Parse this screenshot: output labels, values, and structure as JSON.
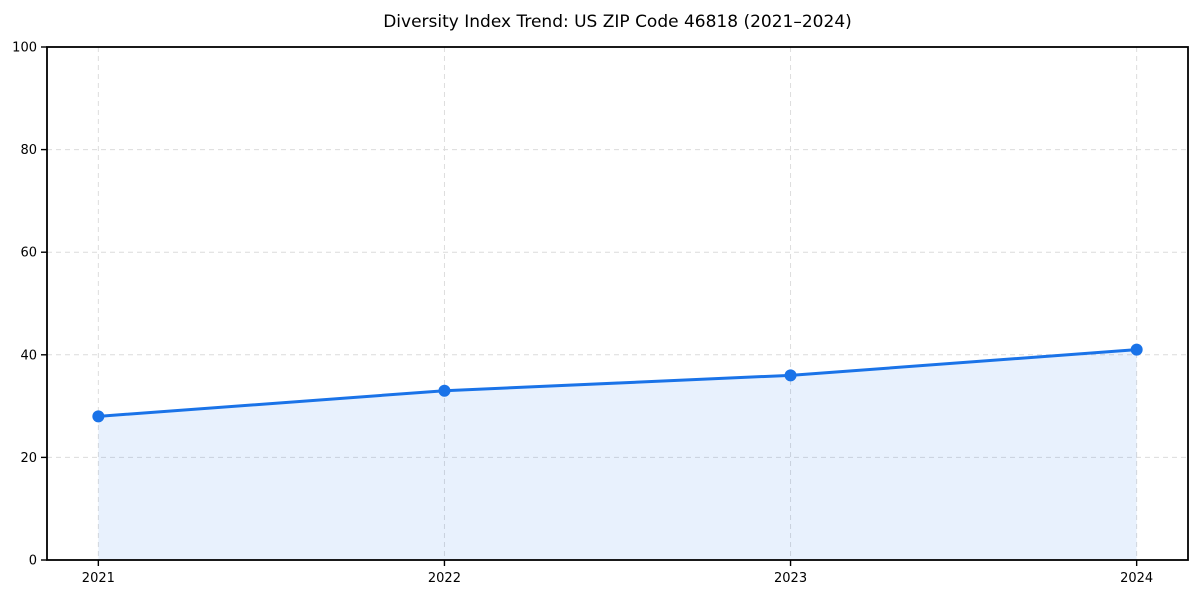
{
  "chart_data": {
    "type": "line",
    "title": "Diversity Index Trend: US ZIP Code 46818 (2021–2024)",
    "categories": [
      "2021",
      "2022",
      "2023",
      "2024"
    ],
    "series": [
      {
        "name": "Diversity Index",
        "values": [
          28,
          33,
          36,
          41
        ]
      }
    ],
    "xlabel": "",
    "ylabel": "",
    "ylim": [
      0,
      100
    ],
    "yticks": [
      0,
      20,
      40,
      60,
      80,
      100
    ],
    "grid": true,
    "grid_style": "dashed",
    "legend_position": "none",
    "marker": "circle",
    "area_fill": true,
    "colors": {
      "line": "#1a73e8",
      "marker": "#1a73e8",
      "area": "rgba(26,115,232,0.10)",
      "grid": "#dcdcdc",
      "spine": "#000000",
      "text": "#000000",
      "background": "#ffffff"
    }
  }
}
